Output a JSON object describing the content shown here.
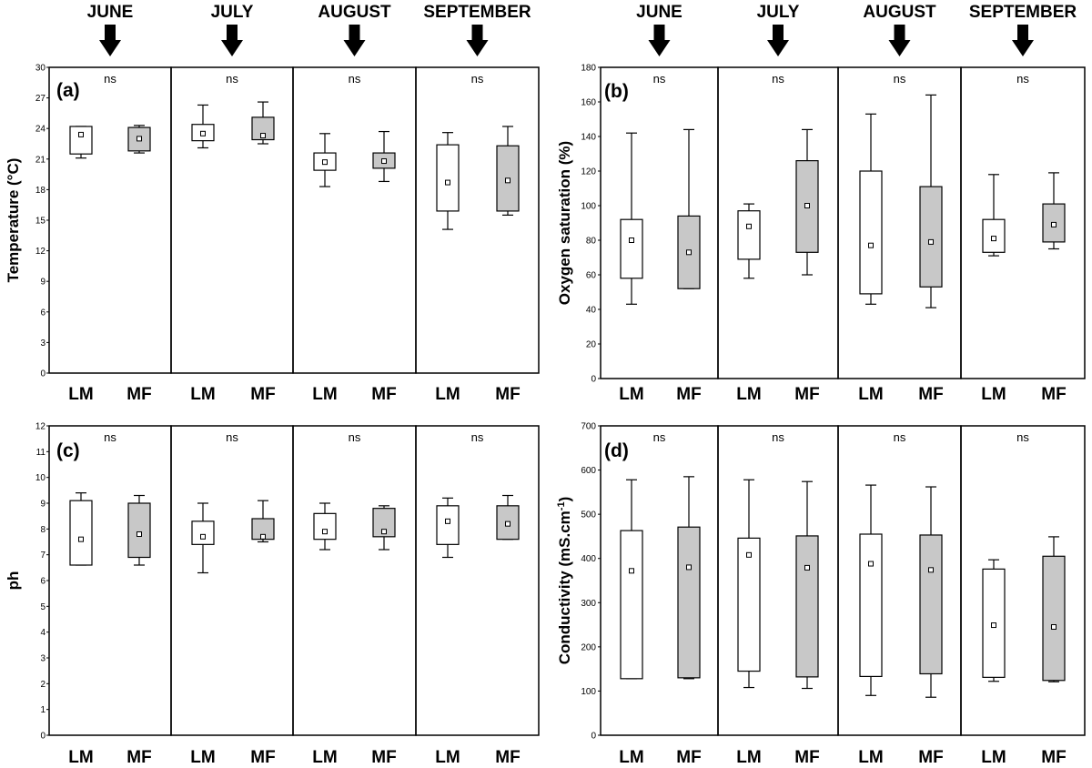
{
  "months": [
    "JUNE",
    "JULY",
    "AUGUST",
    "SEPTEMBER"
  ],
  "chart_data": [
    {
      "type": "box",
      "panel": "(a)",
      "ylabel": "Temperature (°C)",
      "ylim": [
        0,
        30
      ],
      "yticks": [
        0,
        3,
        6,
        9,
        12,
        15,
        18,
        21,
        24,
        27,
        30
      ],
      "categories": [
        "LM",
        "MF"
      ],
      "series": [
        {
          "month": "JUNE",
          "annotation": "ns",
          "boxes": [
            {
              "category": "LM",
              "whisker_low": 21.1,
              "q1": 21.5,
              "mean": 23.4,
              "q3": 24.2,
              "whisker_high": 24.2,
              "fill": "#ffffff"
            },
            {
              "category": "MF",
              "whisker_low": 21.6,
              "q1": 21.8,
              "mean": 23.0,
              "q3": 24.1,
              "whisker_high": 24.3,
              "fill": "#c8c8c8"
            }
          ]
        },
        {
          "month": "JULY",
          "annotation": "ns",
          "boxes": [
            {
              "category": "LM",
              "whisker_low": 22.1,
              "q1": 22.8,
              "mean": 23.5,
              "q3": 24.4,
              "whisker_high": 26.3,
              "fill": "#ffffff"
            },
            {
              "category": "MF",
              "whisker_low": 22.5,
              "q1": 22.9,
              "mean": 23.3,
              "q3": 25.1,
              "whisker_high": 26.6,
              "fill": "#c8c8c8"
            }
          ]
        },
        {
          "month": "AUGUST",
          "annotation": "ns",
          "boxes": [
            {
              "category": "LM",
              "whisker_low": 18.3,
              "q1": 19.9,
              "mean": 20.7,
              "q3": 21.6,
              "whisker_high": 23.5,
              "fill": "#ffffff"
            },
            {
              "category": "MF",
              "whisker_low": 18.8,
              "q1": 20.1,
              "mean": 20.8,
              "q3": 21.6,
              "whisker_high": 23.7,
              "fill": "#c8c8c8"
            }
          ]
        },
        {
          "month": "SEPTEMBER",
          "annotation": "ns",
          "boxes": [
            {
              "category": "LM",
              "whisker_low": 14.1,
              "q1": 15.9,
              "mean": 18.7,
              "q3": 22.4,
              "whisker_high": 23.6,
              "fill": "#ffffff"
            },
            {
              "category": "MF",
              "whisker_low": 15.5,
              "q1": 15.9,
              "mean": 18.9,
              "q3": 22.3,
              "whisker_high": 24.2,
              "fill": "#c8c8c8"
            }
          ]
        }
      ]
    },
    {
      "type": "box",
      "panel": "(b)",
      "ylabel": "Oxygen saturation (%)",
      "ylim": [
        0,
        180
      ],
      "yticks": [
        0,
        20,
        40,
        60,
        80,
        100,
        120,
        140,
        160,
        180
      ],
      "categories": [
        "LM",
        "MF"
      ],
      "series": [
        {
          "month": "JUNE",
          "annotation": "ns",
          "boxes": [
            {
              "category": "LM",
              "whisker_low": 43,
              "q1": 58,
              "mean": 80,
              "q3": 92,
              "whisker_high": 142,
              "fill": "#ffffff"
            },
            {
              "category": "MF",
              "whisker_low": 52,
              "q1": 52,
              "mean": 73,
              "q3": 94,
              "whisker_high": 144,
              "fill": "#c8c8c8"
            }
          ]
        },
        {
          "month": "JULY",
          "annotation": "ns",
          "boxes": [
            {
              "category": "LM",
              "whisker_low": 58,
              "q1": 69,
              "mean": 88,
              "q3": 97,
              "whisker_high": 101,
              "fill": "#ffffff"
            },
            {
              "category": "MF",
              "whisker_low": 60,
              "q1": 73,
              "mean": 100,
              "q3": 126,
              "whisker_high": 144,
              "fill": "#c8c8c8"
            }
          ]
        },
        {
          "month": "AUGUST",
          "annotation": "ns",
          "boxes": [
            {
              "category": "LM",
              "whisker_low": 43,
              "q1": 49,
              "mean": 77,
              "q3": 120,
              "whisker_high": 153,
              "fill": "#ffffff"
            },
            {
              "category": "MF",
              "whisker_low": 41,
              "q1": 53,
              "mean": 79,
              "q3": 111,
              "whisker_high": 164,
              "fill": "#c8c8c8"
            }
          ]
        },
        {
          "month": "SEPTEMBER",
          "annotation": "ns",
          "boxes": [
            {
              "category": "LM",
              "whisker_low": 71,
              "q1": 73,
              "mean": 81,
              "q3": 92,
              "whisker_high": 118,
              "fill": "#ffffff"
            },
            {
              "category": "MF",
              "whisker_low": 75,
              "q1": 79,
              "mean": 89,
              "q3": 101,
              "whisker_high": 119,
              "fill": "#c8c8c8"
            }
          ]
        }
      ]
    },
    {
      "type": "box",
      "panel": "(c)",
      "ylabel": "ph",
      "ylim": [
        0,
        12
      ],
      "yticks": [
        0,
        1,
        2,
        3,
        4,
        5,
        6,
        7,
        8,
        9,
        10,
        11,
        12
      ],
      "categories": [
        "LM",
        "MF"
      ],
      "series": [
        {
          "month": "JUNE",
          "annotation": "ns",
          "boxes": [
            {
              "category": "LM",
              "whisker_low": 6.6,
              "q1": 6.6,
              "mean": 7.6,
              "q3": 9.1,
              "whisker_high": 9.4,
              "fill": "#ffffff"
            },
            {
              "category": "MF",
              "whisker_low": 6.6,
              "q1": 6.9,
              "mean": 7.8,
              "q3": 9.0,
              "whisker_high": 9.3,
              "fill": "#c8c8c8"
            }
          ]
        },
        {
          "month": "JULY",
          "annotation": "ns",
          "boxes": [
            {
              "category": "LM",
              "whisker_low": 6.3,
              "q1": 7.4,
              "mean": 7.7,
              "q3": 8.3,
              "whisker_high": 9.0,
              "fill": "#ffffff"
            },
            {
              "category": "MF",
              "whisker_low": 7.5,
              "q1": 7.6,
              "mean": 7.7,
              "q3": 8.4,
              "whisker_high": 9.1,
              "fill": "#c8c8c8"
            }
          ]
        },
        {
          "month": "AUGUST",
          "annotation": "ns",
          "boxes": [
            {
              "category": "LM",
              "whisker_low": 7.2,
              "q1": 7.6,
              "mean": 7.9,
              "q3": 8.6,
              "whisker_high": 9.0,
              "fill": "#ffffff"
            },
            {
              "category": "MF",
              "whisker_low": 7.2,
              "q1": 7.7,
              "mean": 7.9,
              "q3": 8.8,
              "whisker_high": 8.9,
              "fill": "#c8c8c8"
            }
          ]
        },
        {
          "month": "SEPTEMBER",
          "annotation": "ns",
          "boxes": [
            {
              "category": "LM",
              "whisker_low": 6.9,
              "q1": 7.4,
              "mean": 8.3,
              "q3": 8.9,
              "whisker_high": 9.2,
              "fill": "#ffffff"
            },
            {
              "category": "MF",
              "whisker_low": 7.6,
              "q1": 7.6,
              "mean": 8.2,
              "q3": 8.9,
              "whisker_high": 9.3,
              "fill": "#c8c8c8"
            }
          ]
        }
      ]
    },
    {
      "type": "box",
      "panel": "(d)",
      "ylabel": "Conductivity (mS.cm",
      "ylabel_superscript": "-1",
      "ylabel_suffix": ")",
      "ylim": [
        0,
        700
      ],
      "yticks": [
        0,
        100,
        200,
        300,
        400,
        500,
        600,
        700
      ],
      "categories": [
        "LM",
        "MF"
      ],
      "series": [
        {
          "month": "JUNE",
          "annotation": "ns",
          "boxes": [
            {
              "category": "LM",
              "whisker_low": 128,
              "q1": 128,
              "mean": 372,
              "q3": 463,
              "whisker_high": 578,
              "fill": "#ffffff"
            },
            {
              "category": "MF",
              "whisker_low": 128,
              "q1": 130,
              "mean": 380,
              "q3": 471,
              "whisker_high": 585,
              "fill": "#c8c8c8"
            }
          ]
        },
        {
          "month": "JULY",
          "annotation": "ns",
          "boxes": [
            {
              "category": "LM",
              "whisker_low": 108,
              "q1": 145,
              "mean": 408,
              "q3": 446,
              "whisker_high": 578,
              "fill": "#ffffff"
            },
            {
              "category": "MF",
              "whisker_low": 106,
              "q1": 132,
              "mean": 379,
              "q3": 451,
              "whisker_high": 574,
              "fill": "#c8c8c8"
            }
          ]
        },
        {
          "month": "AUGUST",
          "annotation": "ns",
          "boxes": [
            {
              "category": "LM",
              "whisker_low": 90,
              "q1": 133,
              "mean": 388,
              "q3": 455,
              "whisker_high": 566,
              "fill": "#ffffff"
            },
            {
              "category": "MF",
              "whisker_low": 86,
              "q1": 139,
              "mean": 374,
              "q3": 453,
              "whisker_high": 562,
              "fill": "#c8c8c8"
            }
          ]
        },
        {
          "month": "SEPTEMBER",
          "annotation": "ns",
          "boxes": [
            {
              "category": "LM",
              "whisker_low": 122,
              "q1": 131,
              "mean": 249,
              "q3": 376,
              "whisker_high": 397,
              "fill": "#ffffff"
            },
            {
              "category": "MF",
              "whisker_low": 121,
              "q1": 124,
              "mean": 245,
              "q3": 405,
              "whisker_high": 449,
              "fill": "#c8c8c8"
            }
          ]
        }
      ]
    }
  ]
}
